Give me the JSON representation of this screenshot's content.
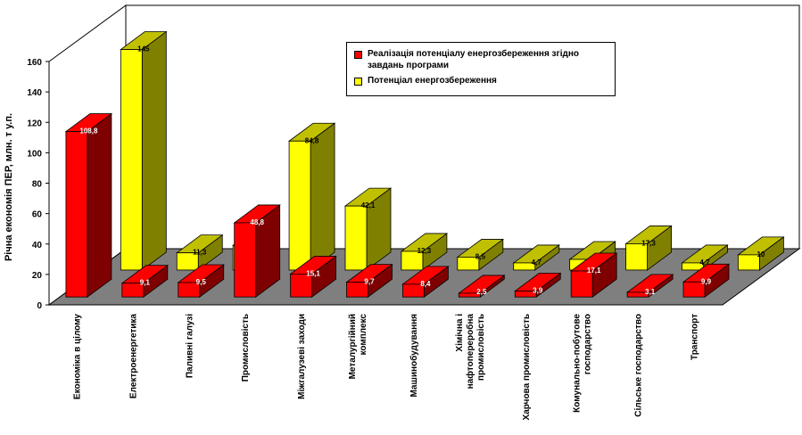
{
  "chart_data": {
    "type": "bar",
    "ylabel": "Річна економія ПЕР, млн. т у.п.",
    "ylim": [
      0,
      160
    ],
    "yticks": [
      0,
      20,
      40,
      60,
      80,
      100,
      120,
      140,
      160
    ],
    "grid": false,
    "legend_position": "top-right",
    "categories": [
      "Економіка в цілому",
      "Електроенергетика",
      "Паливні галузі",
      "Промисловість",
      "Міжгалузеві заходи",
      "Металургійний комплекс",
      "Машинобудування",
      "Хімічна і нафтопереробна промисловість",
      "Харчова промисловість",
      "Комунально-побутове господарство",
      "Сільське господарство",
      "Транспорт"
    ],
    "category_lines": [
      [
        "Економіка в цілому"
      ],
      [
        "Електроенергетика"
      ],
      [
        "Паливні галузі"
      ],
      [
        "Промисловість"
      ],
      [
        "Міжгалузеві заходи"
      ],
      [
        "Металургійний",
        "комплекс"
      ],
      [
        "Машинобудування"
      ],
      [
        "Хімічна і",
        "нафтопереробна",
        "промисловість"
      ],
      [
        "Харчова промисловість"
      ],
      [
        "Комунально-побутове",
        "господарство"
      ],
      [
        "Сільське господарство"
      ],
      [
        "Транспорт"
      ]
    ],
    "series": [
      {
        "name": "Реалізація потенціалу енергозбереження згідно завдань програми",
        "color": "#ff0000",
        "values": [
          108.8,
          9.1,
          9.5,
          48.8,
          15.1,
          9.7,
          8.4,
          2.5,
          3.9,
          17.1,
          3.1,
          9.9
        ],
        "labels": [
          "108,8",
          "9,1",
          "9,5",
          "48,8",
          "15,1",
          "9,7",
          "8,4",
          "2,5",
          "3,9",
          "17,1",
          "3,1",
          "9,9"
        ]
      },
      {
        "name": "Потенціал енергозбереження",
        "color": "#ffff00",
        "values": [
          145,
          11.3,
          16.2,
          84.8,
          42.1,
          12.3,
          8.5,
          4.7,
          7,
          17.3,
          4.7,
          10
        ],
        "labels": [
          "145",
          "11,3",
          "16,2",
          "84,8",
          "42,1",
          "12,3",
          "8,5",
          "4,7",
          "7",
          "17,3",
          "4,7",
          "10"
        ]
      }
    ]
  },
  "legend": {
    "items": [
      {
        "lines": [
          "Реалізація потенціалу енергозбереження згідно",
          "завдань програми"
        ],
        "color": "#ff0000"
      },
      {
        "lines": [
          "Потенціал енергозбереження"
        ],
        "color": "#ffff00"
      }
    ]
  }
}
